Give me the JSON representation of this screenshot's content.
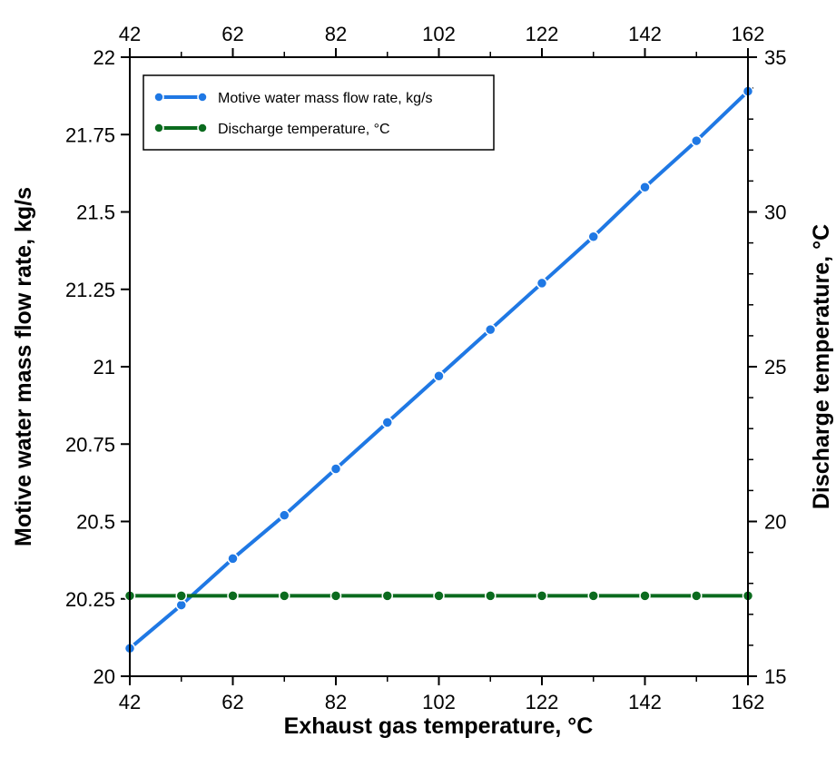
{
  "chart_data": {
    "type": "line",
    "x": [
      42,
      52,
      62,
      72,
      82,
      92,
      102,
      112,
      122,
      132,
      142,
      152,
      162
    ],
    "xlabel": "Exhaust gas temperature, °C",
    "ylabel": "Motive water mass flow rate, kg/s",
    "y2label": "Discharge temperature, °C",
    "xlim": [
      42,
      162
    ],
    "ylim": [
      20,
      22
    ],
    "y2lim": [
      15,
      35
    ],
    "x_ticks": [
      "42",
      "62",
      "82",
      "102",
      "122",
      "142",
      "162"
    ],
    "y_ticks": [
      "20",
      "20.25",
      "20.5",
      "20.75",
      "21",
      "21.25",
      "21.5",
      "21.75",
      "22"
    ],
    "y2_ticks": [
      "15",
      "20",
      "25",
      "30",
      "35"
    ],
    "top_axis_mirrors_bottom": true,
    "grid": false,
    "legend_position": "top-left",
    "series": [
      {
        "name": "Motive water mass flow rate, kg/s",
        "axis": "left",
        "color": "#1f78e4",
        "values": [
          20.09,
          20.23,
          20.38,
          20.52,
          20.67,
          20.82,
          20.97,
          21.12,
          21.27,
          21.42,
          21.58,
          21.73,
          21.89
        ]
      },
      {
        "name": "Discharge temperature, °C",
        "axis": "right",
        "color": "#0b6b1e",
        "values": [
          17.6,
          17.6,
          17.6,
          17.6,
          17.6,
          17.6,
          17.6,
          17.6,
          17.6,
          17.6,
          17.6,
          17.6,
          17.6
        ]
      }
    ]
  }
}
